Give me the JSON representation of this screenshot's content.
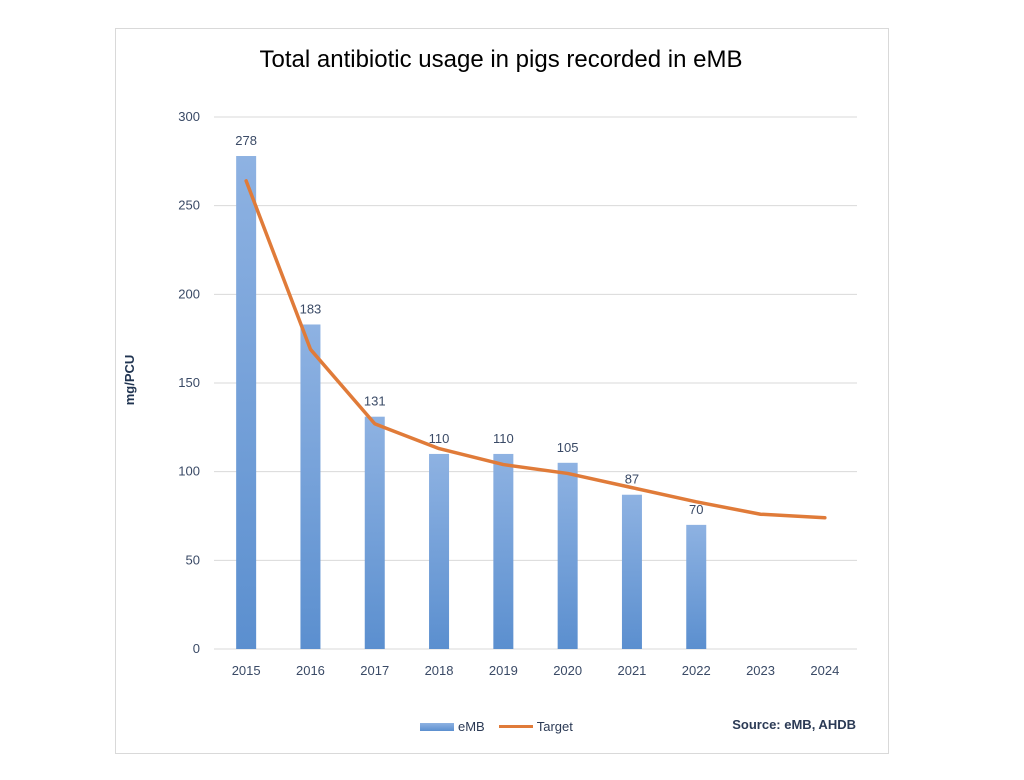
{
  "colors": {
    "bar": "#5b8fcf",
    "bar_light": "#8eb2e2",
    "target": "#e07b39",
    "grid": "#d9d9d9",
    "axis_text": "#3a4a66"
  },
  "chart_data": {
    "type": "bar",
    "title": "Total antibiotic usage in pigs recorded in eMB",
    "ylabel": "mg/PCU",
    "xlabel": "",
    "ylim": [
      0,
      300
    ],
    "yticks": [
      0,
      50,
      100,
      150,
      200,
      250,
      300
    ],
    "grid": true,
    "legend_position": "bottom",
    "categories": [
      "2015",
      "2016",
      "2017",
      "2018",
      "2019",
      "2020",
      "2021",
      "2022",
      "2023",
      "2024"
    ],
    "series": [
      {
        "name": "eMB",
        "type": "bar",
        "values": [
          278,
          183,
          131,
          110,
          110,
          105,
          87,
          70,
          null,
          null
        ],
        "data_labels": true
      },
      {
        "name": "Target",
        "type": "line",
        "values": [
          264,
          169,
          127,
          113,
          104,
          99,
          91,
          83,
          76,
          74
        ],
        "data_labels": false
      }
    ],
    "source": "Source: eMB, AHDB"
  }
}
